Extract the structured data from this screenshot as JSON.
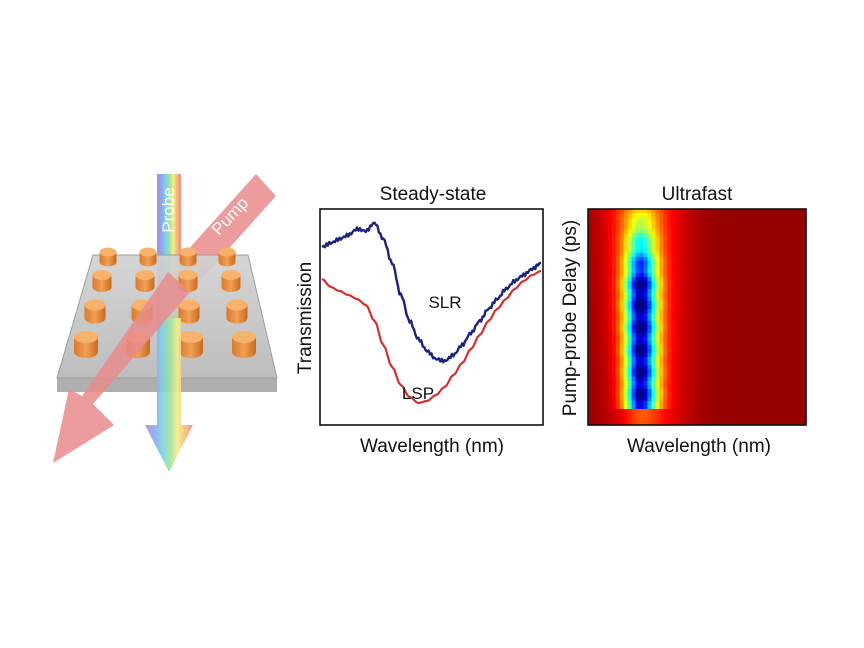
{
  "illustration": {
    "probe_label": "Probe",
    "pump_label": "Pump",
    "pillar_count": 16,
    "colors": {
      "pump_beam": "#e98b8b",
      "substrate": "#c4c4c4",
      "pillar": "#f0a055"
    }
  },
  "steady_state_panel": {
    "title": "Steady-state",
    "xlabel": "Wavelength (nm)",
    "ylabel": "Transmission",
    "annotations": {
      "slr": "SLR",
      "lsp": "LSP"
    },
    "curve_colors": {
      "slr": "#1a237e",
      "lsp": "#d32f2f"
    }
  },
  "ultrafast_panel": {
    "title": "Ultrafast",
    "xlabel": "Wavelength (nm)",
    "ylabel": "Pump-probe Delay (ps)",
    "colormap": "jet"
  },
  "chart_data": [
    {
      "type": "line",
      "title": "Steady-state",
      "xlabel": "Wavelength (nm)",
      "ylabel": "Transmission",
      "ticks": "none",
      "grid": false,
      "x": [
        0,
        0.04,
        0.08,
        0.12,
        0.16,
        0.2,
        0.24,
        0.28,
        0.32,
        0.36,
        0.4,
        0.44,
        0.48,
        0.52,
        0.56,
        0.6,
        0.64,
        0.68,
        0.72,
        0.76,
        0.8,
        0.84,
        0.88,
        0.92,
        0.96,
        1
      ],
      "series": [
        {
          "name": "SLR",
          "values": [
            0.84,
            0.86,
            0.88,
            0.9,
            0.93,
            0.92,
            0.96,
            0.88,
            0.76,
            0.6,
            0.47,
            0.38,
            0.32,
            0.28,
            0.27,
            0.3,
            0.35,
            0.41,
            0.47,
            0.53,
            0.58,
            0.63,
            0.67,
            0.7,
            0.73,
            0.76
          ]
        },
        {
          "name": "LSP",
          "values": [
            0.68,
            0.64,
            0.62,
            0.6,
            0.58,
            0.55,
            0.47,
            0.35,
            0.24,
            0.15,
            0.09,
            0.06,
            0.07,
            0.1,
            0.14,
            0.2,
            0.26,
            0.33,
            0.4,
            0.47,
            0.53,
            0.58,
            0.63,
            0.67,
            0.7,
            0.72
          ]
        }
      ]
    },
    {
      "type": "heatmap",
      "title": "Ultrafast",
      "xlabel": "Wavelength (nm)",
      "ylabel": "Pump-probe Delay (ps)",
      "colormap": "jet",
      "ticks": "none"
    }
  ]
}
